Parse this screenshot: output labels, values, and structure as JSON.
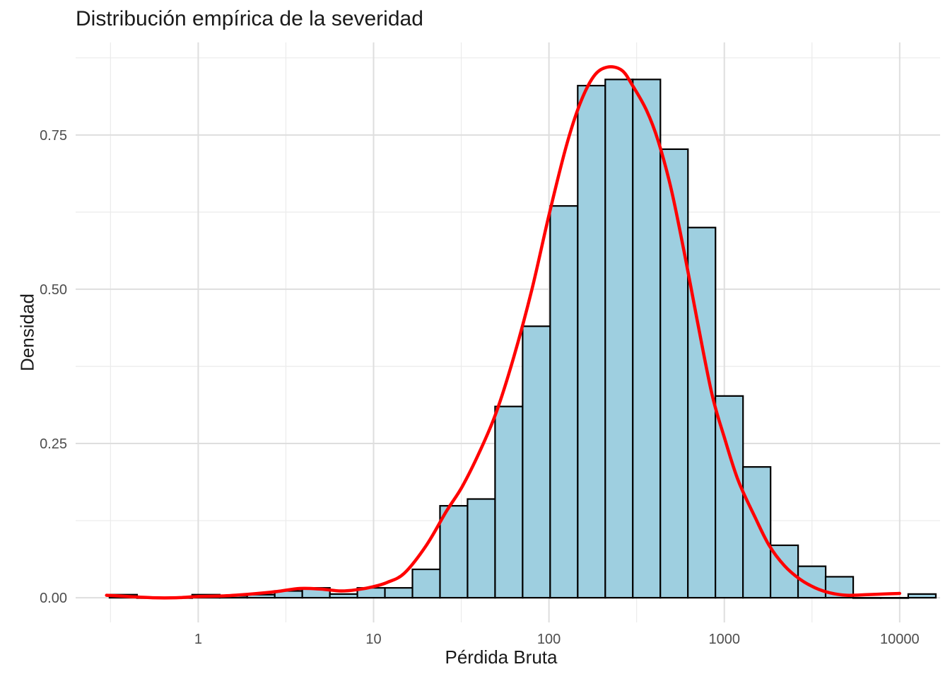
{
  "chart_data": {
    "type": "bar",
    "title": "Distribución empírica de la severidad",
    "xlabel": "Pérdida Bruta",
    "ylabel": "Densidad",
    "x_scale": "log10",
    "xlim": [
      0.2,
      17000
    ],
    "ylim": [
      -0.04,
      0.9
    ],
    "x_ticks": [
      1,
      10,
      100,
      1000,
      10000
    ],
    "x_tick_labels": [
      "1",
      "10",
      "100",
      "1000",
      "10000"
    ],
    "y_ticks": [
      0,
      0.25,
      0.5,
      0.75
    ],
    "y_tick_labels": [
      "0.00",
      "0.25",
      "0.50",
      "0.75"
    ],
    "grid": true,
    "bar_fill": "#9ecfe0",
    "bar_outline": "#000000",
    "curve_color": "#ff0000",
    "bin_width_log10": 0.1575,
    "bins": [
      {
        "center": 0.374,
        "density": 0.005
      },
      {
        "center": 0.537,
        "density": 0.0
      },
      {
        "center": 0.771,
        "density": 0.0
      },
      {
        "center": 1.107,
        "density": 0.005
      },
      {
        "center": 1.589,
        "density": 0.003
      },
      {
        "center": 2.281,
        "density": 0.005
      },
      {
        "center": 3.275,
        "density": 0.011
      },
      {
        "center": 4.701,
        "density": 0.016
      },
      {
        "center": 6.749,
        "density": 0.006
      },
      {
        "center": 9.69,
        "density": 0.016
      },
      {
        "center": 13.91,
        "density": 0.016
      },
      {
        "center": 19.97,
        "density": 0.046
      },
      {
        "center": 28.67,
        "density": 0.149
      },
      {
        "center": 41.16,
        "density": 0.16
      },
      {
        "center": 59.09,
        "density": 0.31
      },
      {
        "center": 84.84,
        "density": 0.44
      },
      {
        "center": 121.8,
        "density": 0.635
      },
      {
        "center": 174.9,
        "density": 0.83
      },
      {
        "center": 251.1,
        "density": 0.84
      },
      {
        "center": 360.4,
        "density": 0.84
      },
      {
        "center": 517.5,
        "density": 0.727
      },
      {
        "center": 742.9,
        "density": 0.6
      },
      {
        "center": 1066.5,
        "density": 0.327
      },
      {
        "center": 1531.2,
        "density": 0.212
      },
      {
        "center": 2198.3,
        "density": 0.085
      },
      {
        "center": 3156.1,
        "density": 0.051
      },
      {
        "center": 4531.1,
        "density": 0.034
      },
      {
        "center": 6505.1,
        "density": 0.0
      },
      {
        "center": 9339.2,
        "density": 0.0
      },
      {
        "center": 13408,
        "density": 0.006
      }
    ],
    "density_curve": {
      "name": "",
      "x": [
        0.3,
        0.4,
        0.55,
        0.75,
        1,
        1.4,
        2,
        2.8,
        3.8,
        5,
        6.5,
        8,
        10,
        12,
        15,
        20,
        26,
        32,
        40,
        50,
        63,
        80,
        100,
        125,
        150,
        180,
        215,
        260,
        300,
        360,
        420,
        500,
        600,
        700,
        850,
        1000,
        1200,
        1500,
        1800,
        2200,
        2700,
        3300,
        4000,
        5000,
        6500,
        8000,
        10000
      ],
      "y": [
        0.004,
        0.002,
        0.0,
        0.0,
        0.002,
        0.003,
        0.006,
        0.01,
        0.015,
        0.014,
        0.011,
        0.013,
        0.018,
        0.025,
        0.04,
        0.085,
        0.14,
        0.18,
        0.235,
        0.3,
        0.39,
        0.5,
        0.62,
        0.73,
        0.8,
        0.845,
        0.86,
        0.855,
        0.83,
        0.79,
        0.74,
        0.66,
        0.55,
        0.45,
        0.33,
        0.26,
        0.19,
        0.13,
        0.085,
        0.052,
        0.03,
        0.016,
        0.008,
        0.004,
        0.005,
        0.006,
        0.007
      ]
    }
  }
}
